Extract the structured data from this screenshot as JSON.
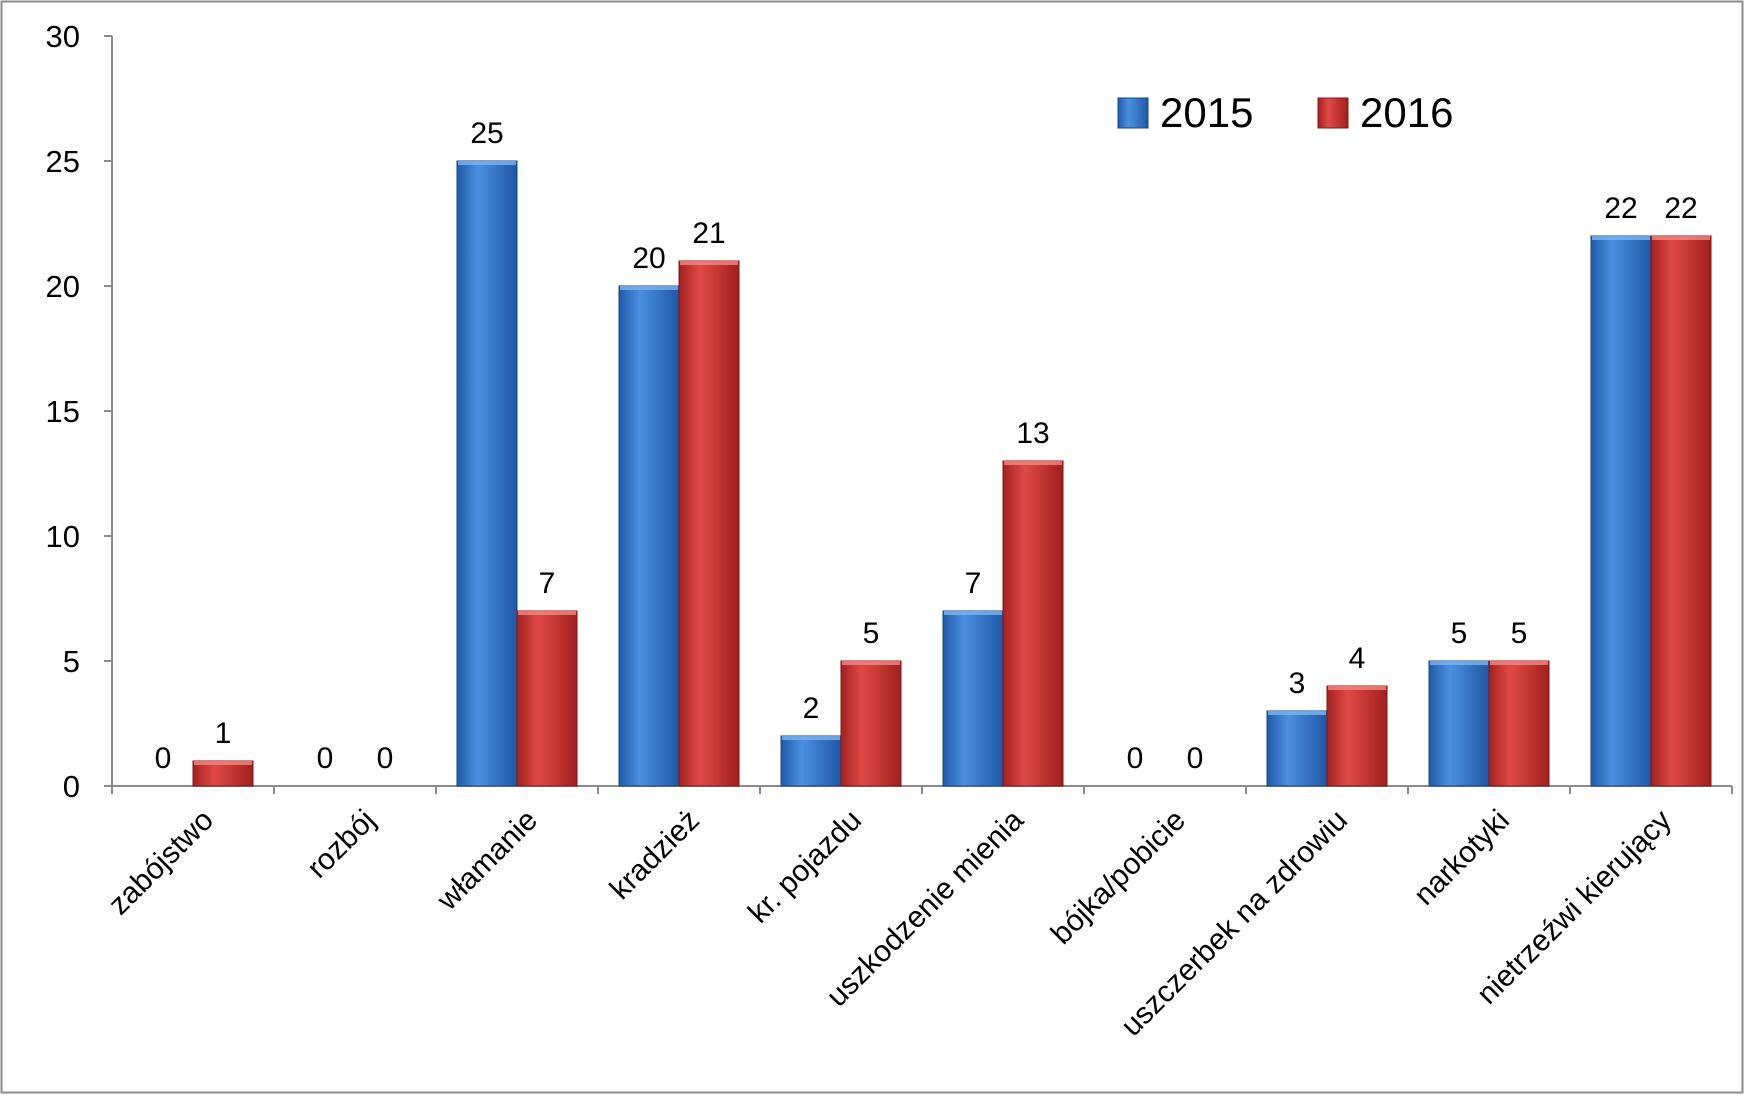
{
  "chart_data": {
    "type": "bar",
    "categories": [
      "zabójstwo",
      "rozbój",
      "włamanie",
      "kradzież",
      "kr. pojazdu",
      "uszkodzenie mienia",
      "bójka/pobicie",
      "uszczerbek na zdrowiu",
      "narkotyki",
      "nietrzeźwi kierujący"
    ],
    "series": [
      {
        "name": "2015",
        "values": [
          0,
          0,
          25,
          20,
          2,
          7,
          0,
          3,
          5,
          22
        ],
        "color": "#2e75c8"
      },
      {
        "name": "2016",
        "values": [
          1,
          0,
          7,
          21,
          5,
          13,
          0,
          4,
          5,
          22
        ],
        "color": "#c0302e"
      }
    ],
    "title": "",
    "xlabel": "",
    "ylabel": "",
    "ylim": [
      0,
      30
    ],
    "yticks": [
      "0",
      "5",
      "10",
      "15",
      "20",
      "25",
      "30"
    ],
    "grid": false,
    "legend_position": "top-right",
    "data_labels": true
  }
}
